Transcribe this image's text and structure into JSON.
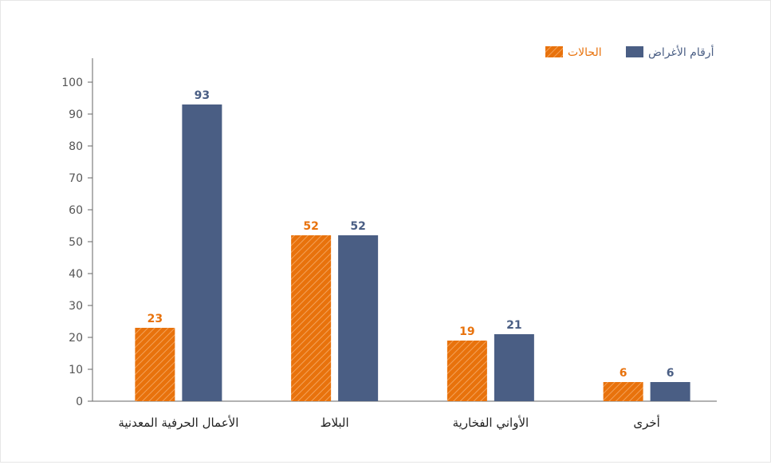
{
  "chart_data": {
    "type": "bar",
    "title": "",
    "xlabel": "",
    "ylabel": "",
    "categories": [
      "الأعمال الحرفية المعدنية",
      "البلاط",
      "الأواني الفخارية",
      "أخرى"
    ],
    "series": [
      {
        "name": "الحالات",
        "values": [
          23,
          52,
          19,
          6
        ],
        "color": "#e8720c",
        "pattern": "diagonal-hatch"
      },
      {
        "name": "أرقام الأغراض",
        "values": [
          93,
          52,
          21,
          6
        ],
        "color": "#4a5e84"
      }
    ],
    "ylim": [
      0,
      100
    ],
    "yticks": [
      0,
      10,
      20,
      30,
      40,
      50,
      60,
      70,
      80,
      90,
      100
    ],
    "grid": false,
    "legend_position": "top-right"
  }
}
